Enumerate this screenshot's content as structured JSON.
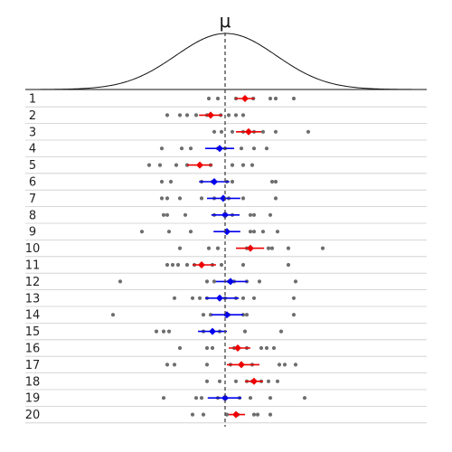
{
  "chart_data": {
    "type": "scatter",
    "description_axis": "sample index 1-20, each row shows points, sample mean and confidence interval",
    "mu_label": "μ",
    "x_range": [
      -4.0,
      4.0
    ],
    "true_mean": 0,
    "density_curve": "normal",
    "point_color": "#555555",
    "covers_color": "#0000ee",
    "misses_color": "#ee0000",
    "rows": [
      {
        "label": "1",
        "mean": 0.55,
        "ci": [
          0.28,
          0.82
        ],
        "covers": false,
        "points": [
          -0.45,
          -0.2,
          0.3,
          0.55,
          0.78,
          1.25,
          1.4,
          1.9
        ]
      },
      {
        "label": "2",
        "mean": -0.4,
        "ci": [
          -0.72,
          -0.08
        ],
        "covers": false,
        "points": [
          -1.6,
          -1.25,
          -1.05,
          -0.8,
          -0.5,
          -0.12,
          0.1,
          0.3,
          0.5
        ]
      },
      {
        "label": "3",
        "mean": 0.65,
        "ci": [
          0.3,
          1.0
        ],
        "covers": false,
        "points": [
          -0.3,
          -0.1,
          0.2,
          0.5,
          0.8,
          1.05,
          1.4,
          2.3
        ]
      },
      {
        "label": "4",
        "mean": -0.15,
        "ci": [
          -0.55,
          0.25
        ],
        "covers": true,
        "points": [
          -1.75,
          -1.2,
          -0.95,
          -0.2,
          0.0,
          0.45,
          0.8,
          1.15
        ]
      },
      {
        "label": "5",
        "mean": -0.7,
        "ci": [
          -1.05,
          -0.35
        ],
        "covers": false,
        "points": [
          -2.1,
          -1.8,
          -1.35,
          -1.05,
          -0.4,
          0.2,
          0.5,
          0.75
        ]
      },
      {
        "label": "6",
        "mean": -0.3,
        "ci": [
          -0.72,
          0.12
        ],
        "covers": true,
        "points": [
          -1.75,
          -1.5,
          -0.65,
          -0.35,
          0.05,
          0.2,
          1.3,
          1.4
        ]
      },
      {
        "label": "7",
        "mean": -0.05,
        "ci": [
          -0.5,
          0.42
        ],
        "covers": true,
        "points": [
          -1.75,
          -1.6,
          -1.25,
          -0.65,
          -0.3,
          0.1,
          0.5,
          1.4
        ]
      },
      {
        "label": "8",
        "mean": 0.0,
        "ci": [
          -0.38,
          0.4
        ],
        "covers": true,
        "points": [
          -1.7,
          -1.6,
          -1.1,
          -0.3,
          0.2,
          0.7,
          0.8,
          1.25
        ]
      },
      {
        "label": "9",
        "mean": 0.05,
        "ci": [
          -0.32,
          0.42
        ],
        "covers": true,
        "points": [
          -2.3,
          -1.55,
          -0.95,
          0.05,
          0.7,
          0.8,
          1.05,
          1.45
        ]
      },
      {
        "label": "10",
        "mean": 0.7,
        "ci": [
          0.3,
          1.08
        ],
        "covers": false,
        "points": [
          -1.25,
          -0.45,
          -0.2,
          0.6,
          1.2,
          1.3,
          1.75,
          2.7
        ]
      },
      {
        "label": "11",
        "mean": -0.65,
        "ci": [
          -0.9,
          -0.25
        ],
        "covers": false,
        "points": [
          -1.6,
          -1.45,
          -1.3,
          -1.05,
          -0.85,
          -0.35,
          -0.1,
          0.5,
          1.75
        ]
      },
      {
        "label": "12",
        "mean": 0.15,
        "ci": [
          -0.25,
          0.62
        ],
        "covers": true,
        "points": [
          -2.9,
          -0.5,
          -0.3,
          0.1,
          0.25,
          0.6,
          0.95,
          1.95
        ]
      },
      {
        "label": "13",
        "mean": -0.15,
        "ci": [
          -0.55,
          0.38
        ],
        "covers": true,
        "points": [
          -1.4,
          -0.9,
          -0.7,
          -0.5,
          0.0,
          0.3,
          0.5,
          0.8,
          1.9
        ]
      },
      {
        "label": "14",
        "mean": 0.05,
        "ci": [
          -0.38,
          0.5
        ],
        "covers": true,
        "points": [
          -3.1,
          -0.6,
          -0.4,
          0.1,
          0.5,
          0.6,
          1.9
        ]
      },
      {
        "label": "15",
        "mean": -0.35,
        "ci": [
          -0.75,
          0.05
        ],
        "covers": true,
        "points": [
          -1.9,
          -1.7,
          -1.55,
          -0.6,
          -0.35,
          -0.15,
          0.55,
          1.55
        ]
      },
      {
        "label": "16",
        "mean": 0.35,
        "ci": [
          0.1,
          0.7
        ],
        "covers": false,
        "points": [
          -1.25,
          -0.5,
          -0.35,
          0.25,
          0.6,
          1.0,
          1.15,
          1.35
        ]
      },
      {
        "label": "17",
        "mean": 0.45,
        "ci": [
          0.05,
          0.95
        ],
        "covers": false,
        "points": [
          -1.6,
          -1.4,
          -0.5,
          0.15,
          0.75,
          1.5,
          1.65,
          1.95
        ]
      },
      {
        "label": "18",
        "mean": 0.8,
        "ci": [
          0.55,
          1.05
        ],
        "covers": false,
        "points": [
          -0.5,
          -0.15,
          0.3,
          0.6,
          0.75,
          1.0,
          1.2,
          1.45
        ]
      },
      {
        "label": "19",
        "mean": 0.0,
        "ci": [
          -0.48,
          0.45
        ],
        "covers": true,
        "points": [
          -1.7,
          -0.8,
          -0.65,
          -0.2,
          0.4,
          0.7,
          1.25,
          2.2
        ]
      },
      {
        "label": "20",
        "mean": 0.3,
        "ci": [
          0.1,
          0.55
        ],
        "covers": false,
        "points": [
          -0.9,
          -0.6,
          0.05,
          0.35,
          0.8,
          0.9,
          1.25
        ]
      }
    ]
  }
}
